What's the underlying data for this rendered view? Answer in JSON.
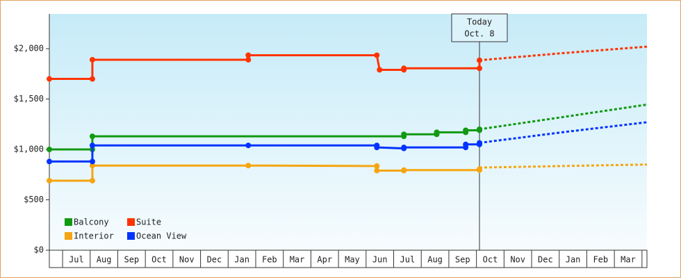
{
  "chart_data": {
    "type": "step-line",
    "categories": [
      null,
      "Jul",
      "Aug",
      "Sep",
      "Oct",
      "Nov",
      "Dec",
      "Jan",
      "Feb",
      "Mar",
      "Apr",
      "May",
      "Jun",
      "Jul",
      "Aug",
      "Sep",
      "Oct",
      "Nov",
      "Dec",
      "Jan",
      "Feb",
      "Mar"
    ],
    "xlim": [
      0.52,
      22.18
    ],
    "ylim": [
      0,
      2345
    ],
    "yticks": [
      {
        "value": 0,
        "label": "$0"
      },
      {
        "value": 500,
        "label": "$500"
      },
      {
        "value": 1000,
        "label": "$1,000"
      },
      {
        "value": 1500,
        "label": "$1,500"
      },
      {
        "value": 2000,
        "label": "$2,000"
      }
    ],
    "annotation": {
      "lines": [
        "Today",
        "Oct. 8"
      ],
      "x": 16.11
    },
    "legend": "bottom-left",
    "series": [
      {
        "name": "Balcony",
        "color": "#119911",
        "x": [
          0.52,
          2.08,
          2.08,
          13.37,
          13.37,
          14.56,
          14.56,
          15.61,
          15.61,
          16.11,
          16.11
        ],
        "values": [
          1000,
          1000,
          1130,
          1130,
          1150,
          1150,
          1170,
          1170,
          1190,
          1190,
          1200
        ],
        "forecast_x": [
          16.11,
          19.1,
          22.18
        ],
        "forecast_values": [
          1200,
          1320,
          1445
        ]
      },
      {
        "name": "Suite",
        "color": "#ff3300",
        "x": [
          0.52,
          2.08,
          2.08,
          7.73,
          7.73,
          12.39,
          12.49,
          13.37,
          13.37,
          16.11,
          16.11
        ],
        "values": [
          1700,
          1700,
          1890,
          1890,
          1935,
          1935,
          1790,
          1790,
          1805,
          1805,
          1885
        ],
        "forecast_x": [
          16.11,
          19.1,
          22.18
        ],
        "forecast_values": [
          1885,
          1955,
          2020
        ]
      },
      {
        "name": "Interior",
        "color": "#f5a511",
        "x": [
          0.52,
          2.08,
          2.08,
          7.73,
          12.39,
          12.39,
          13.37,
          13.37,
          16.11,
          16.11
        ],
        "values": [
          690,
          690,
          840,
          840,
          835,
          790,
          790,
          795,
          795,
          805
        ],
        "forecast_x": [
          16.11,
          19.1,
          22.18
        ],
        "forecast_values": [
          820,
          835,
          850
        ]
      },
      {
        "name": "Ocean View",
        "color": "#0033ff",
        "x": [
          0.52,
          2.08,
          2.08,
          7.73,
          12.39,
          12.39,
          13.37,
          13.37,
          15.61,
          15.61,
          16.11,
          16.11
        ],
        "values": [
          880,
          880,
          1040,
          1040,
          1040,
          1020,
          1010,
          1020,
          1020,
          1050,
          1050,
          1065
        ],
        "forecast_x": [
          16.11,
          19.1,
          22.18
        ],
        "forecast_values": [
          1065,
          1170,
          1270
        ]
      }
    ]
  }
}
